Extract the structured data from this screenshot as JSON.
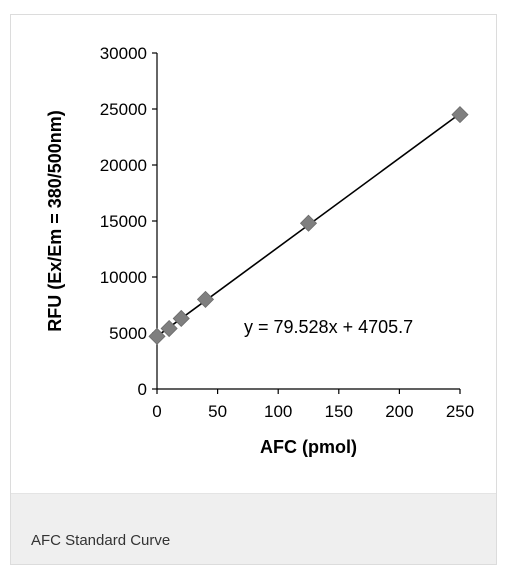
{
  "caption": "AFC Standard Curve",
  "chart_data": {
    "type": "scatter",
    "xlabel": "AFC (pmol)",
    "ylabel": "RFU (Ex/Em = 380/500nm)",
    "xlim": [
      0,
      250
    ],
    "ylim": [
      0,
      30000
    ],
    "x_ticks": [
      0,
      50,
      100,
      150,
      200,
      250
    ],
    "y_ticks": [
      0,
      5000,
      10000,
      15000,
      20000,
      25000,
      30000
    ],
    "points": [
      {
        "x": 0,
        "y": 4700
      },
      {
        "x": 10,
        "y": 5400
      },
      {
        "x": 20,
        "y": 6300
      },
      {
        "x": 40,
        "y": 8000
      },
      {
        "x": 125,
        "y": 14800
      },
      {
        "x": 250,
        "y": 24500
      }
    ],
    "trendline": {
      "slope": 79.528,
      "intercept": 4705.7
    },
    "equation": "y = 79.528x + 4705.7",
    "marker_color": "#7f7f7f",
    "line_color": "#000000",
    "grid": false
  }
}
